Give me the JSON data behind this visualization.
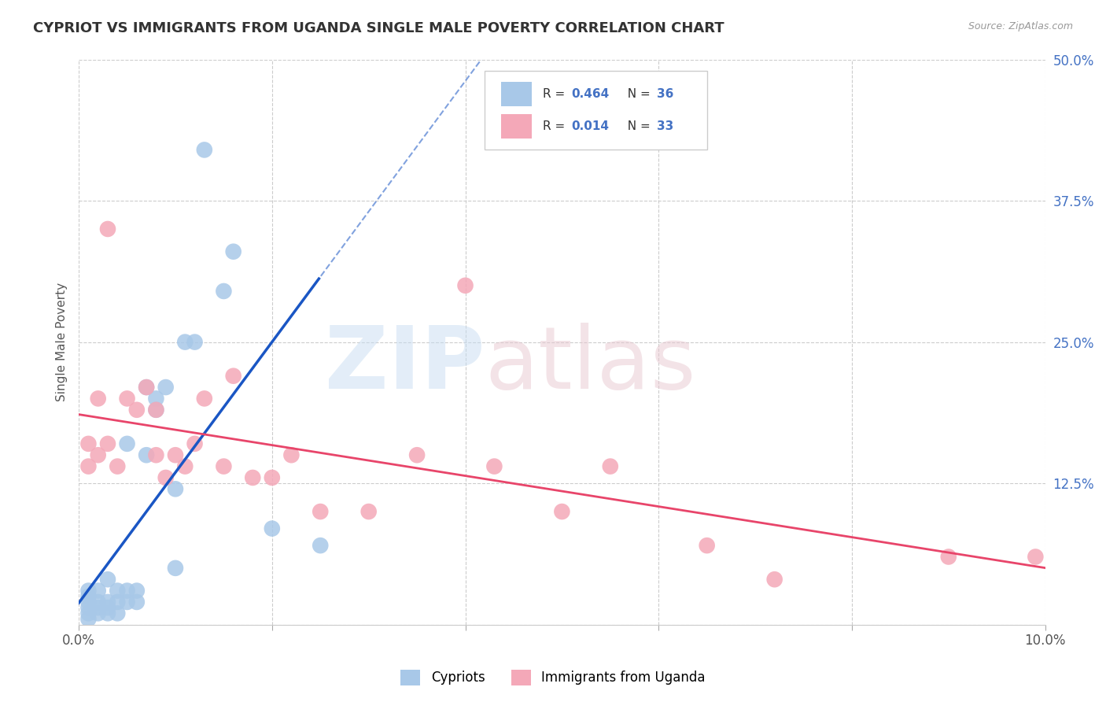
{
  "title": "CYPRIOT VS IMMIGRANTS FROM UGANDA SINGLE MALE POVERTY CORRELATION CHART",
  "source": "Source: ZipAtlas.com",
  "ylabel": "Single Male Poverty",
  "xlim": [
    0.0,
    0.1
  ],
  "ylim": [
    0.0,
    0.5
  ],
  "xticks": [
    0.0,
    0.02,
    0.04,
    0.06,
    0.08,
    0.1
  ],
  "yticks": [
    0.0,
    0.125,
    0.25,
    0.375,
    0.5
  ],
  "cypriot_color": "#a8c8e8",
  "uganda_color": "#f4a8b8",
  "cypriot_line_color": "#1a56c4",
  "uganda_line_color": "#e8456a",
  "cypriot_R": 0.464,
  "cypriot_N": 36,
  "uganda_R": 0.014,
  "uganda_N": 33,
  "background_color": "#ffffff",
  "grid_color": "#cccccc",
  "cypriot_x": [
    0.001,
    0.001,
    0.001,
    0.001,
    0.001,
    0.001,
    0.002,
    0.002,
    0.002,
    0.002,
    0.003,
    0.003,
    0.003,
    0.003,
    0.004,
    0.004,
    0.004,
    0.005,
    0.005,
    0.005,
    0.006,
    0.006,
    0.007,
    0.007,
    0.008,
    0.008,
    0.009,
    0.01,
    0.01,
    0.011,
    0.012,
    0.013,
    0.015,
    0.016,
    0.02,
    0.025
  ],
  "cypriot_y": [
    0.005,
    0.01,
    0.015,
    0.02,
    0.025,
    0.03,
    0.01,
    0.015,
    0.02,
    0.03,
    0.01,
    0.015,
    0.02,
    0.04,
    0.01,
    0.02,
    0.03,
    0.02,
    0.03,
    0.16,
    0.02,
    0.03,
    0.15,
    0.21,
    0.19,
    0.2,
    0.21,
    0.05,
    0.12,
    0.25,
    0.25,
    0.42,
    0.295,
    0.33,
    0.085,
    0.07
  ],
  "uganda_x": [
    0.001,
    0.001,
    0.002,
    0.002,
    0.003,
    0.003,
    0.004,
    0.005,
    0.006,
    0.007,
    0.008,
    0.008,
    0.009,
    0.01,
    0.011,
    0.012,
    0.013,
    0.015,
    0.016,
    0.018,
    0.02,
    0.022,
    0.025,
    0.03,
    0.035,
    0.04,
    0.043,
    0.05,
    0.055,
    0.065,
    0.072,
    0.09,
    0.099
  ],
  "uganda_y": [
    0.14,
    0.16,
    0.15,
    0.2,
    0.16,
    0.35,
    0.14,
    0.2,
    0.19,
    0.21,
    0.15,
    0.19,
    0.13,
    0.15,
    0.14,
    0.16,
    0.2,
    0.14,
    0.22,
    0.13,
    0.13,
    0.15,
    0.1,
    0.1,
    0.15,
    0.3,
    0.14,
    0.1,
    0.14,
    0.07,
    0.04,
    0.06,
    0.06
  ]
}
